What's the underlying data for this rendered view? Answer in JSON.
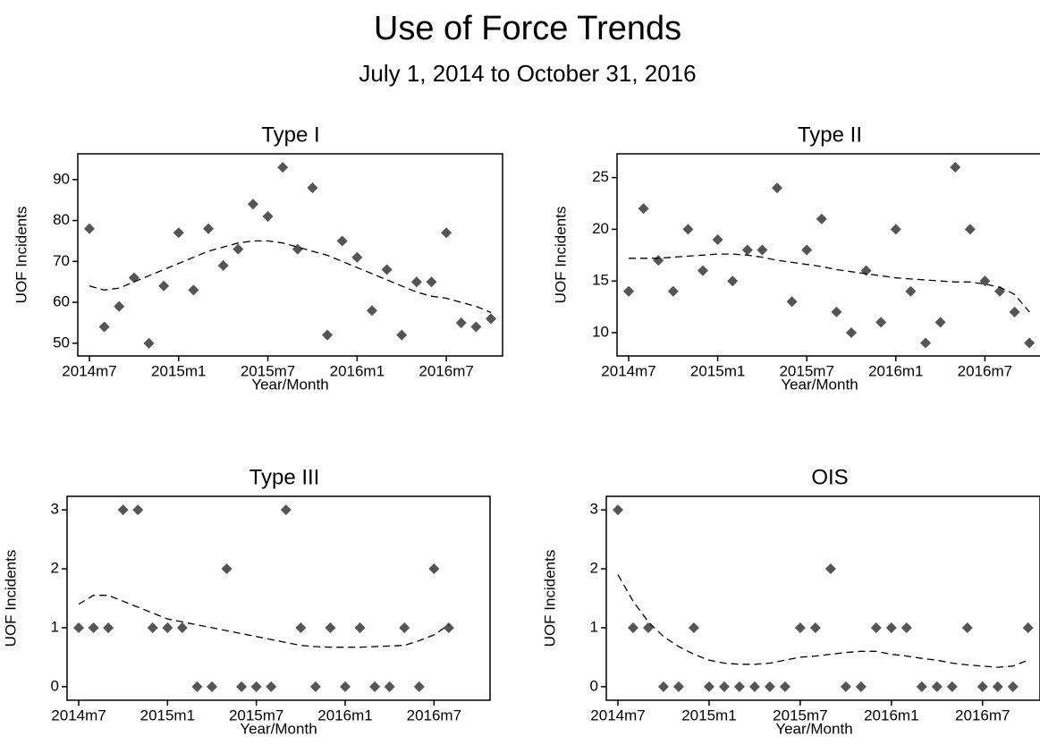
{
  "title": "Use of Force Trends",
  "subtitle": "July 1, 2014 to October 31, 2016",
  "chart_data": [
    {
      "type": "scatter",
      "title": "Type I",
      "xlabel": "Year/Month",
      "ylabel": "UOF Incidents",
      "x": [
        "2014m7",
        "2014m8",
        "2014m9",
        "2014m10",
        "2014m11",
        "2014m12",
        "2015m1",
        "2015m2",
        "2015m3",
        "2015m4",
        "2015m5",
        "2015m6",
        "2015m7",
        "2015m8",
        "2015m9",
        "2015m10",
        "2015m11",
        "2015m12",
        "2016m1",
        "2016m2",
        "2016m3",
        "2016m4",
        "2016m5",
        "2016m6",
        "2016m7",
        "2016m8",
        "2016m9",
        "2016m10"
      ],
      "xticks": [
        "2014m7",
        "2015m1",
        "2015m7",
        "2016m1",
        "2016m7"
      ],
      "ylim": [
        46.9,
        96.3
      ],
      "yticks": [
        50,
        60,
        70,
        80,
        90
      ],
      "series": [
        {
          "type": "scatter",
          "marker": "diamond",
          "color": "#555555",
          "values": [
            78,
            54,
            59,
            66,
            50,
            64,
            77,
            63,
            78,
            69,
            73,
            84,
            81,
            93,
            73,
            88,
            52,
            75,
            71,
            58,
            68,
            52,
            65,
            65,
            77,
            55,
            54,
            56
          ]
        },
        {
          "type": "line",
          "style": "dashed",
          "color": "#000000",
          "values": [
            64,
            63,
            63.5,
            65,
            66.5,
            68,
            69.5,
            71,
            72.5,
            73.5,
            74.5,
            75,
            75,
            74.5,
            73.5,
            72.5,
            71.5,
            70,
            68.5,
            67,
            65.5,
            64,
            62.5,
            61.5,
            61,
            60,
            59,
            57.5
          ]
        }
      ]
    },
    {
      "type": "scatter",
      "title": "Type II",
      "xlabel": "Year/Month",
      "ylabel": "UOF Incidents",
      "x": [
        "2014m7",
        "2014m8",
        "2014m9",
        "2014m10",
        "2014m11",
        "2014m12",
        "2015m1",
        "2015m2",
        "2015m3",
        "2015m4",
        "2015m5",
        "2015m6",
        "2015m7",
        "2015m8",
        "2015m9",
        "2015m10",
        "2015m11",
        "2015m12",
        "2016m1",
        "2016m2",
        "2016m3",
        "2016m4",
        "2016m5",
        "2016m6",
        "2016m7",
        "2016m8",
        "2016m9",
        "2016m10"
      ],
      "xticks": [
        "2014m7",
        "2015m1",
        "2015m7",
        "2016m1",
        "2016m7"
      ],
      "ylim": [
        7.75,
        27.3
      ],
      "yticks": [
        10,
        15,
        20,
        25
      ],
      "series": [
        {
          "type": "scatter",
          "marker": "diamond",
          "color": "#555555",
          "values": [
            14,
            22,
            17,
            14,
            20,
            16,
            19,
            15,
            18,
            18,
            24,
            13,
            18,
            21,
            12,
            10,
            16,
            11,
            20,
            14,
            9,
            11,
            26,
            20,
            15,
            14,
            12,
            9
          ]
        },
        {
          "type": "line",
          "style": "dashed",
          "color": "#000000",
          "values": [
            17.2,
            17.2,
            17.2,
            17.3,
            17.4,
            17.5,
            17.6,
            17.6,
            17.5,
            17.3,
            17.0,
            16.8,
            16.6,
            16.4,
            16.1,
            15.9,
            15.7,
            15.5,
            15.3,
            15.2,
            15.1,
            15.0,
            14.9,
            14.9,
            14.7,
            14.4,
            13.7,
            12.0
          ]
        }
      ]
    },
    {
      "type": "scatter",
      "title": "Type III",
      "xlabel": "Year/Month",
      "ylabel": "UOF Incidents",
      "x": [
        "2014m7",
        "2014m8",
        "2014m9",
        "2014m10",
        "2014m11",
        "2014m12",
        "2015m1",
        "2015m2",
        "2015m3",
        "2015m4",
        "2015m5",
        "2015m6",
        "2015m7",
        "2015m8",
        "2015m9",
        "2015m10",
        "2015m11",
        "2015m12",
        "2016m1",
        "2016m2",
        "2016m3",
        "2016m4",
        "2016m5",
        "2016m6",
        "2016m7",
        "2016m8",
        "2016m9",
        "2016m10"
      ],
      "xticks": [
        "2014m7",
        "2015m1",
        "2015m7",
        "2016m1",
        "2016m7"
      ],
      "ylim": [
        -0.23,
        3.23
      ],
      "yticks": [
        0,
        1,
        2,
        3
      ],
      "series": [
        {
          "type": "scatter",
          "marker": "diamond",
          "color": "#555555",
          "values": [
            1,
            1,
            1,
            3,
            3,
            1,
            1,
            1,
            0,
            0,
            2,
            0,
            0,
            0,
            3,
            1,
            0,
            1,
            0,
            1,
            0,
            0,
            1,
            0,
            2,
            1,
            null,
            null
          ]
        },
        {
          "type": "line",
          "style": "dashed",
          "color": "#000000",
          "values": [
            1.4,
            1.55,
            1.55,
            1.45,
            1.35,
            1.25,
            1.15,
            1.1,
            1.05,
            1.0,
            0.95,
            0.9,
            0.85,
            0.8,
            0.75,
            0.7,
            0.68,
            0.67,
            0.67,
            0.67,
            0.68,
            0.69,
            0.7,
            0.78,
            0.88,
            1.05,
            null,
            null
          ]
        }
      ]
    },
    {
      "type": "scatter",
      "title": "OIS",
      "xlabel": "Year/Month",
      "ylabel": "UOF Incidents",
      "x": [
        "2014m7",
        "2014m8",
        "2014m9",
        "2014m10",
        "2014m11",
        "2014m12",
        "2015m1",
        "2015m2",
        "2015m3",
        "2015m4",
        "2015m5",
        "2015m6",
        "2015m7",
        "2015m8",
        "2015m9",
        "2015m10",
        "2015m11",
        "2015m12",
        "2016m1",
        "2016m2",
        "2016m3",
        "2016m4",
        "2016m5",
        "2016m6",
        "2016m7",
        "2016m8",
        "2016m9",
        "2016m10"
      ],
      "xticks": [
        "2014m7",
        "2015m1",
        "2015m7",
        "2016m1",
        "2016m7"
      ],
      "ylim": [
        -0.23,
        3.23
      ],
      "yticks": [
        0,
        1,
        2,
        3
      ],
      "series": [
        {
          "type": "scatter",
          "marker": "diamond",
          "color": "#555555",
          "values": [
            3,
            1,
            1,
            0,
            0,
            1,
            0,
            0,
            0,
            0,
            0,
            0,
            1,
            1,
            2,
            0,
            0,
            1,
            1,
            1,
            0,
            0,
            0,
            1,
            0,
            0,
            0,
            1
          ]
        },
        {
          "type": "line",
          "style": "dashed",
          "color": "#000000",
          "values": [
            1.9,
            1.45,
            1.1,
            0.85,
            0.68,
            0.55,
            0.45,
            0.4,
            0.38,
            0.38,
            0.4,
            0.45,
            0.5,
            0.52,
            0.55,
            0.58,
            0.6,
            0.6,
            0.55,
            0.52,
            0.48,
            0.45,
            0.4,
            0.37,
            0.35,
            0.33,
            0.35,
            0.45
          ]
        }
      ]
    }
  ]
}
